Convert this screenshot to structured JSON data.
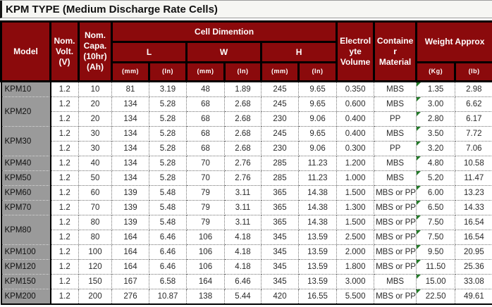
{
  "title": "KPM TYPE (Medium Discharge Rate Cells)",
  "colors": {
    "header_bg": "#8b0a0c",
    "header_text": "#ffffff",
    "model_cell_bg": "#9a9a9a",
    "grid_border": "#000000",
    "dotted_border": "#6f6f6f",
    "error_marker_green": "#227a28",
    "title_bg": "#f6f6f3"
  },
  "table": {
    "headers": {
      "model": "Model",
      "nom_volt": "Nom. Volt. (V)",
      "nom_capa": "Nom. Capa. (10hr) (Ah)",
      "cell_dimention": "Cell Dimention",
      "dim_l": "L",
      "dim_w": "W",
      "dim_h": "H",
      "unit_mm": "(mm)",
      "unit_in": "(In)",
      "electrolyte_volume": "Electrolyte Volume",
      "container_material": "Container Material",
      "weight_approx": "Weight Approx",
      "unit_kg": "(Kg)",
      "unit_lb": "(Ib)"
    },
    "groups": [
      {
        "model": "KPM10",
        "rows": [
          [
            "1.2",
            "10",
            "81",
            "3.19",
            "48",
            "1.89",
            "245",
            "9.65",
            "0.350",
            "MBS",
            "1.35",
            "2.98"
          ]
        ]
      },
      {
        "model": "KPM20",
        "rows": [
          [
            "1.2",
            "20",
            "134",
            "5.28",
            "68",
            "2.68",
            "245",
            "9.65",
            "0.600",
            "MBS",
            "3.00",
            "6.62"
          ],
          [
            "1.2",
            "20",
            "134",
            "5.28",
            "68",
            "2.68",
            "230",
            "9.06",
            "0.400",
            "PP",
            "2.80",
            "6.17"
          ]
        ]
      },
      {
        "model": "KPM30",
        "rows": [
          [
            "1.2",
            "30",
            "134",
            "5.28",
            "68",
            "2.68",
            "245",
            "9.65",
            "0.400",
            "MBS",
            "3.50",
            "7.72"
          ],
          [
            "1.2",
            "30",
            "134",
            "5.28",
            "68",
            "2.68",
            "230",
            "9.06",
            "0.300",
            "PP",
            "3.20",
            "7.06"
          ]
        ]
      },
      {
        "model": "KPM40",
        "rows": [
          [
            "1.2",
            "40",
            "134",
            "5.28",
            "70",
            "2.76",
            "285",
            "11.23",
            "1.200",
            "MBS",
            "4.80",
            "10.58"
          ]
        ]
      },
      {
        "model": "KPM50",
        "rows": [
          [
            "1.2",
            "50",
            "134",
            "5.28",
            "70",
            "2.76",
            "285",
            "11.23",
            "1.000",
            "MBS",
            "5.20",
            "11.47"
          ]
        ]
      },
      {
        "model": "KPM60",
        "rows": [
          [
            "1.2",
            "60",
            "139",
            "5.48",
            "79",
            "3.11",
            "365",
            "14.38",
            "1.500",
            "MBS or PP",
            "6.00",
            "13.23"
          ]
        ]
      },
      {
        "model": "KPM70",
        "rows": [
          [
            "1.2",
            "70",
            "139",
            "5.48",
            "79",
            "3.11",
            "365",
            "14.38",
            "1.300",
            "MBS or PP",
            "6.50",
            "14.33"
          ]
        ]
      },
      {
        "model": "KPM80",
        "rows": [
          [
            "1.2",
            "80",
            "139",
            "5.48",
            "79",
            "3.11",
            "365",
            "14.38",
            "1.500",
            "MBS or PP",
            "7.50",
            "16.54"
          ],
          [
            "1.2",
            "80",
            "164",
            "6.46",
            "106",
            "4.18",
            "345",
            "13.59",
            "2.500",
            "MBS or PP",
            "7.50",
            "16.54"
          ]
        ]
      },
      {
        "model": "KPM100",
        "rows": [
          [
            "1.2",
            "100",
            "164",
            "6.46",
            "106",
            "4.18",
            "345",
            "13.59",
            "2.000",
            "MBS or PP",
            "9.50",
            "20.95"
          ]
        ]
      },
      {
        "model": "KPM120",
        "rows": [
          [
            "1.2",
            "120",
            "164",
            "6.46",
            "106",
            "4.18",
            "345",
            "13.59",
            "1.800",
            "MBS or PP",
            "11.50",
            "25.36"
          ]
        ]
      },
      {
        "model": "KPM150",
        "rows": [
          [
            "1.2",
            "150",
            "167",
            "6.58",
            "164",
            "6.46",
            "345",
            "13.59",
            "3.000",
            "MBS",
            "15.00",
            "33.08"
          ]
        ]
      },
      {
        "model": "KPM200",
        "rows": [
          [
            "1.2",
            "200",
            "276",
            "10.87",
            "138",
            "5.44",
            "420",
            "16.55",
            "5.500",
            "MBS or PP",
            "22.50",
            "49.61"
          ]
        ]
      }
    ]
  }
}
